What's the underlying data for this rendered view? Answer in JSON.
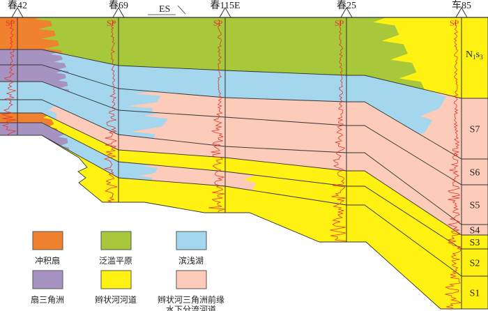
{
  "wells": [
    {
      "name": "春42",
      "curve": "SP"
    },
    {
      "name": "春69",
      "curve": "SP"
    },
    {
      "name": "春115E",
      "curve": "SP"
    },
    {
      "name": "春25",
      "curve": "SP"
    },
    {
      "name": "车85",
      "curve": "SP"
    }
  ],
  "direction": {
    "label": "ES",
    "arrow": "direction-arrow"
  },
  "strata_column": {
    "top_unit": {
      "main": "N",
      "sub1": "1",
      "mid": "s",
      "sub2": "3"
    },
    "units": [
      "S7",
      "S6",
      "S5",
      "S4",
      "S3",
      "S2",
      "S1"
    ]
  },
  "legend": [
    {
      "key": "alluvial",
      "label": "冲积扇",
      "color": "#f0812f"
    },
    {
      "key": "flood",
      "label": "泛滥平原",
      "color": "#a6c83a"
    },
    {
      "key": "lake",
      "label": "滨浅湖",
      "color": "#a4d6ee"
    },
    {
      "key": "fandelta",
      "label": "扇三角洲",
      "color": "#a693c1"
    },
    {
      "key": "braided",
      "label": "辫状河河道",
      "color": "#fff212"
    },
    {
      "key": "front",
      "label": "辫状河三角洲前缘",
      "label2": "水下分流河道",
      "color": "#fccbb9"
    }
  ],
  "colors": {
    "sp_curve": "#e8332a",
    "line": "#333333"
  }
}
